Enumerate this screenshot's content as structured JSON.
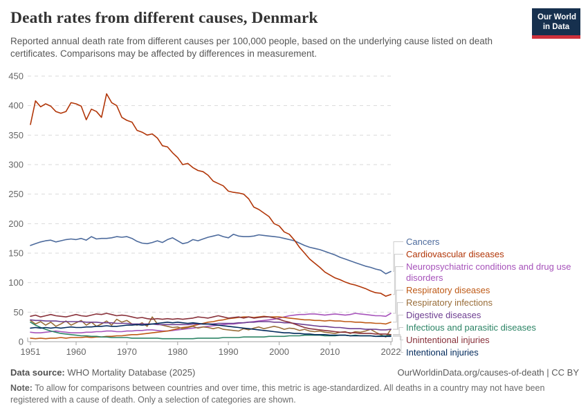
{
  "header": {
    "title": "Death rates from different causes, Denmark",
    "subtitle": "Reported annual death rate from different causes per 100,000 people, based on the underlying cause listed on death certificates. Comparisons may be affected by differences in measurement.",
    "logo": {
      "line1": "Our World",
      "line2": "in Data",
      "bg_color": "#16304e",
      "accent_color": "#cd303b"
    }
  },
  "chart_data": {
    "type": "line",
    "title": "Death rates from different causes, Denmark",
    "xlabel": "",
    "ylabel": "Death rate per 100,000 people",
    "x_start": 1951,
    "x_end": 2022,
    "x_step": 1,
    "x_ticks": [
      1951,
      1960,
      1970,
      1980,
      1990,
      2000,
      2010,
      2022
    ],
    "y_ticks": [
      0,
      50,
      100,
      150,
      200,
      250,
      300,
      350,
      400,
      450
    ],
    "ylim": [
      0,
      450
    ],
    "grid": true,
    "grid_style": "dashed",
    "legend_position": "right",
    "axis_color": "#a3a3a3",
    "grid_color": "#dadada",
    "connector_color": "#cccccc",
    "series": [
      {
        "name": "Cancers",
        "slug": "cancers",
        "color": "#4C6A9C",
        "label_lines": [
          "Cancers"
        ],
        "values": [
          163,
          166,
          169,
          171,
          172,
          169,
          171,
          173,
          174,
          173,
          175,
          172,
          178,
          174,
          175,
          175,
          176,
          178,
          177,
          178,
          175,
          170,
          167,
          166,
          168,
          171,
          168,
          173,
          176,
          171,
          166,
          168,
          173,
          171,
          174,
          177,
          179,
          181,
          178,
          176,
          182,
          179,
          178,
          178,
          179,
          181,
          180,
          179,
          178,
          177,
          175,
          173,
          171,
          167,
          163,
          160,
          158,
          156,
          153,
          150,
          147,
          143,
          140,
          137,
          134,
          131,
          128,
          126,
          123,
          121,
          115,
          119
        ]
      },
      {
        "name": "Cardiovascular diseases",
        "slug": "cardiovascular-diseases",
        "color": "#B13507",
        "label_lines": [
          "Cardiovascular diseases"
        ],
        "values": [
          368,
          408,
          398,
          403,
          399,
          390,
          387,
          390,
          405,
          403,
          399,
          376,
          394,
          390,
          380,
          420,
          405,
          400,
          380,
          375,
          372,
          358,
          355,
          350,
          352,
          345,
          332,
          330,
          320,
          312,
          300,
          302,
          295,
          290,
          288,
          282,
          272,
          268,
          264,
          255,
          253,
          252,
          250,
          242,
          228,
          224,
          218,
          212,
          200,
          196,
          186,
          182,
          172,
          160,
          150,
          140,
          133,
          126,
          118,
          113,
          108,
          105,
          101,
          98,
          96,
          93,
          90,
          86,
          83,
          82,
          77,
          80
        ]
      },
      {
        "name": "Neuropsychiatric conditions and drug use disorders",
        "slug": "neuropsychiatric-conditions",
        "color": "#A652BA",
        "label_lines": [
          "Neuropsychiatric conditions and drug use",
          "disorders"
        ],
        "values": [
          16,
          15,
          15,
          16,
          17,
          18,
          17,
          16,
          15,
          15,
          15,
          16,
          16,
          17,
          17,
          18,
          18,
          17,
          17,
          18,
          18,
          19,
          19,
          20,
          20,
          19,
          18,
          18,
          19,
          20,
          21,
          22,
          23,
          24,
          25,
          26,
          27,
          28,
          29,
          30,
          30,
          31,
          32,
          33,
          34,
          35,
          36,
          37,
          38,
          40,
          42,
          44,
          45,
          46,
          46,
          47,
          47,
          46,
          45,
          46,
          47,
          46,
          45,
          46,
          48,
          47,
          46,
          45,
          44,
          44,
          43,
          48
        ]
      },
      {
        "name": "Respiratory diseases",
        "slug": "respiratory-diseases",
        "color": "#BE5915",
        "label_lines": [
          "Respiratory diseases"
        ],
        "values": [
          6,
          5,
          6,
          5,
          6,
          6,
          7,
          6,
          7,
          7,
          7,
          8,
          7,
          8,
          8,
          9,
          9,
          10,
          10,
          11,
          12,
          12,
          13,
          14,
          15,
          16,
          17,
          18,
          20,
          22,
          24,
          25,
          27,
          29,
          31,
          33,
          34,
          36,
          37,
          39,
          40,
          41,
          42,
          42,
          41,
          42,
          43,
          42,
          42,
          42,
          41,
          40,
          39,
          38,
          37,
          37,
          36,
          36,
          35,
          36,
          35,
          35,
          34,
          34,
          33,
          33,
          32,
          32,
          31,
          31,
          30,
          33
        ]
      },
      {
        "name": "Respiratory infections",
        "slug": "respiratory-infections",
        "color": "#996D39",
        "label_lines": [
          "Respiratory infections"
        ],
        "values": [
          36,
          30,
          34,
          28,
          33,
          26,
          30,
          35,
          28,
          32,
          36,
          28,
          33,
          26,
          30,
          35,
          28,
          38,
          33,
          36,
          30,
          28,
          32,
          26,
          42,
          30,
          28,
          26,
          24,
          25,
          22,
          24,
          26,
          23,
          25,
          24,
          22,
          24,
          21,
          20,
          19,
          18,
          22,
          20,
          23,
          25,
          22,
          24,
          26,
          24,
          21,
          23,
          22,
          19,
          21,
          18,
          17,
          18,
          16,
          15,
          14,
          16,
          17,
          14,
          17,
          16,
          18,
          21,
          16,
          12,
          8,
          21
        ]
      },
      {
        "name": "Digestive diseases",
        "slug": "digestive-diseases",
        "color": "#6D3E91",
        "label_lines": [
          "Digestive diseases"
        ],
        "values": [
          37,
          36,
          36,
          35,
          35,
          35,
          34,
          34,
          34,
          34,
          34,
          33,
          33,
          33,
          32,
          32,
          32,
          31,
          31,
          31,
          30,
          30,
          30,
          30,
          30,
          29,
          29,
          29,
          29,
          29,
          29,
          29,
          30,
          30,
          30,
          30,
          30,
          31,
          31,
          31,
          31,
          32,
          32,
          33,
          33,
          34,
          34,
          34,
          33,
          33,
          32,
          32,
          31,
          30,
          29,
          28,
          27,
          26,
          26,
          25,
          24,
          24,
          23,
          22,
          22,
          22,
          21,
          21,
          21,
          20,
          20,
          21
        ]
      },
      {
        "name": "Infectious and parasitic diseases",
        "slug": "infectious-and-parasitic-diseases",
        "color": "#2C8465",
        "label_lines": [
          "Infectious and parasitic diseases"
        ],
        "values": [
          33,
          28,
          24,
          21,
          18,
          16,
          14,
          13,
          12,
          11,
          10,
          10,
          9,
          9,
          8,
          8,
          7,
          7,
          7,
          7,
          6,
          6,
          6,
          6,
          6,
          6,
          5,
          5,
          5,
          5,
          5,
          5,
          5,
          6,
          6,
          6,
          6,
          6,
          7,
          7,
          7,
          7,
          8,
          8,
          8,
          8,
          8,
          9,
          9,
          9,
          9,
          10,
          10,
          10,
          11,
          11,
          11,
          11,
          10,
          10,
          10,
          11,
          11,
          10,
          11,
          10,
          10,
          10,
          9,
          10,
          10,
          11
        ]
      },
      {
        "name": "Unintentional injuries",
        "slug": "unintentional-injuries",
        "color": "#883039",
        "label_lines": [
          "Unintentional injuries"
        ],
        "values": [
          43,
          45,
          42,
          44,
          46,
          44,
          43,
          42,
          44,
          46,
          44,
          43,
          45,
          47,
          46,
          48,
          46,
          44,
          45,
          44,
          42,
          40,
          41,
          39,
          38,
          39,
          38,
          39,
          38,
          39,
          38,
          39,
          40,
          42,
          41,
          40,
          42,
          44,
          42,
          40,
          41,
          42,
          40,
          42,
          40,
          41,
          42,
          42,
          40,
          38,
          35,
          33,
          30,
          27,
          24,
          22,
          21,
          20,
          19,
          18,
          17,
          16,
          16,
          15,
          15,
          14,
          14,
          14,
          13,
          13,
          13,
          12
        ]
      },
      {
        "name": "Intentional injuries",
        "slug": "intentional-injuries",
        "color": "#00295B",
        "label_lines": [
          "Intentional injuries"
        ],
        "values": [
          23,
          24,
          23,
          24,
          23,
          24,
          23,
          24,
          25,
          24,
          24,
          25,
          25,
          26,
          26,
          27,
          26,
          26,
          27,
          28,
          28,
          29,
          28,
          29,
          30,
          31,
          32,
          33,
          32,
          33,
          32,
          31,
          32,
          31,
          30,
          30,
          29,
          28,
          27,
          26,
          25,
          24,
          23,
          22,
          21,
          20,
          19,
          18,
          17,
          16,
          15,
          15,
          14,
          14,
          13,
          13,
          12,
          12,
          12,
          11,
          11,
          11,
          11,
          10,
          10,
          10,
          10,
          10,
          9,
          9,
          9,
          9
        ]
      }
    ]
  },
  "footer": {
    "source_label": "Data source:",
    "source_value": "WHO Mortality Database (2025)",
    "attribution": "OurWorldinData.org/causes-of-death | CC BY",
    "note_label": "Note:",
    "note_text": "To allow for comparisons between countries and over time, this metric is age-standardized. All deaths in a country may not have been registered with a cause of death. Only a selection of categories are shown."
  }
}
